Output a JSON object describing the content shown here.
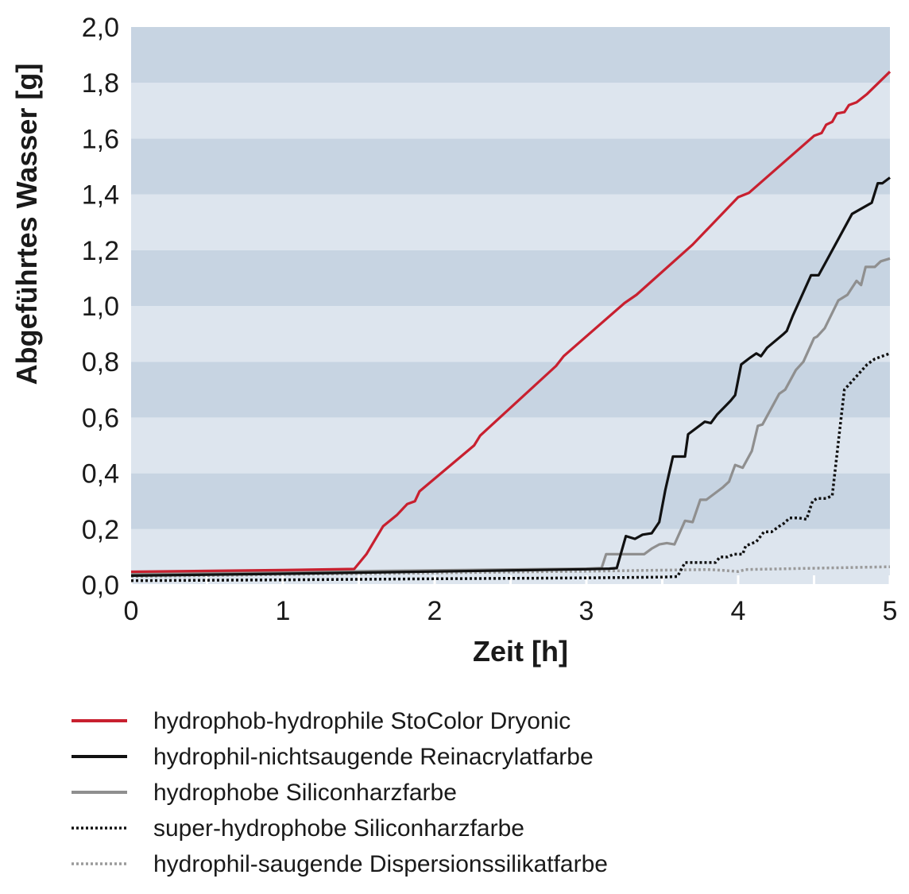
{
  "chart_data": {
    "type": "line",
    "title": "",
    "xlabel": "Zeit [h]",
    "ylabel": "Abgeführtes Wasser [g]",
    "xlim": [
      0,
      5
    ],
    "ylim": [
      0,
      2.0
    ],
    "x_ticks": [
      0,
      1,
      2,
      3,
      4,
      5
    ],
    "x_tick_labels": [
      "0",
      "1",
      "2",
      "3",
      "4",
      "5"
    ],
    "y_ticks": [
      0,
      0.2,
      0.4,
      0.6,
      0.8,
      1.0,
      1.2,
      1.4,
      1.6,
      1.8,
      2.0
    ],
    "y_tick_labels": [
      "0,0",
      "0,2",
      "0,4",
      "0,6",
      "0,8",
      "1,0",
      "1,2",
      "1,4",
      "1,6",
      "1,8",
      "2,0"
    ],
    "grid": "horizontal bands",
    "legend_position": "bottom",
    "band_colors": [
      "#c7d4e2",
      "#dde5ee"
    ],
    "series": [
      {
        "name": "hydrophob-hydrophile StoColor Dryonic",
        "color": "#c8202f",
        "style": "solid",
        "points": [
          [
            0,
            0.047
          ],
          [
            1.0,
            0.053
          ],
          [
            1.47,
            0.057
          ],
          [
            1.55,
            0.11
          ],
          [
            1.66,
            0.21
          ],
          [
            1.75,
            0.25
          ],
          [
            1.82,
            0.29
          ],
          [
            1.87,
            0.3
          ],
          [
            1.9,
            0.335
          ],
          [
            2.26,
            0.5
          ],
          [
            2.3,
            0.535
          ],
          [
            2.8,
            0.785
          ],
          [
            2.85,
            0.82
          ],
          [
            3.25,
            1.01
          ],
          [
            3.33,
            1.04
          ],
          [
            3.7,
            1.22
          ],
          [
            4.0,
            1.39
          ],
          [
            4.07,
            1.405
          ],
          [
            4.5,
            1.61
          ],
          [
            4.55,
            1.62
          ],
          [
            4.58,
            1.65
          ],
          [
            4.62,
            1.66
          ],
          [
            4.65,
            1.69
          ],
          [
            4.7,
            1.695
          ],
          [
            4.73,
            1.72
          ],
          [
            4.78,
            1.73
          ],
          [
            4.85,
            1.76
          ],
          [
            5.0,
            1.84
          ]
        ]
      },
      {
        "name": "hydrophil-nichtsaugende Reinacrylatfarbe",
        "color": "#111111",
        "style": "solid",
        "points": [
          [
            0,
            0.033
          ],
          [
            1.0,
            0.04
          ],
          [
            2.0,
            0.048
          ],
          [
            3.0,
            0.056
          ],
          [
            3.15,
            0.058
          ],
          [
            3.2,
            0.06
          ],
          [
            3.26,
            0.175
          ],
          [
            3.32,
            0.165
          ],
          [
            3.37,
            0.18
          ],
          [
            3.43,
            0.185
          ],
          [
            3.48,
            0.225
          ],
          [
            3.52,
            0.34
          ],
          [
            3.57,
            0.46
          ],
          [
            3.65,
            0.46
          ],
          [
            3.67,
            0.54
          ],
          [
            3.78,
            0.585
          ],
          [
            3.82,
            0.58
          ],
          [
            3.86,
            0.61
          ],
          [
            3.95,
            0.66
          ],
          [
            3.98,
            0.68
          ],
          [
            4.02,
            0.79
          ],
          [
            4.08,
            0.815
          ],
          [
            4.12,
            0.83
          ],
          [
            4.15,
            0.82
          ],
          [
            4.19,
            0.85
          ],
          [
            4.3,
            0.9
          ],
          [
            4.32,
            0.91
          ],
          [
            4.36,
            0.965
          ],
          [
            4.48,
            1.11
          ],
          [
            4.53,
            1.11
          ],
          [
            4.57,
            1.15
          ],
          [
            4.75,
            1.33
          ],
          [
            4.88,
            1.37
          ],
          [
            4.92,
            1.44
          ],
          [
            4.95,
            1.44
          ],
          [
            5.0,
            1.46
          ]
        ]
      },
      {
        "name": "hydrophobe Siliconharzfarbe",
        "color": "#8f8f8f",
        "style": "solid",
        "points": [
          [
            0,
            0.04
          ],
          [
            1.0,
            0.046
          ],
          [
            2.0,
            0.052
          ],
          [
            3.0,
            0.058
          ],
          [
            3.1,
            0.06
          ],
          [
            3.13,
            0.11
          ],
          [
            3.38,
            0.11
          ],
          [
            3.43,
            0.13
          ],
          [
            3.48,
            0.145
          ],
          [
            3.53,
            0.15
          ],
          [
            3.58,
            0.145
          ],
          [
            3.65,
            0.23
          ],
          [
            3.7,
            0.225
          ],
          [
            3.75,
            0.305
          ],
          [
            3.79,
            0.305
          ],
          [
            3.9,
            0.35
          ],
          [
            3.94,
            0.37
          ],
          [
            3.98,
            0.43
          ],
          [
            4.03,
            0.42
          ],
          [
            4.09,
            0.48
          ],
          [
            4.13,
            0.57
          ],
          [
            4.16,
            0.575
          ],
          [
            4.27,
            0.685
          ],
          [
            4.31,
            0.7
          ],
          [
            4.38,
            0.77
          ],
          [
            4.43,
            0.8
          ],
          [
            4.5,
            0.885
          ],
          [
            4.52,
            0.89
          ],
          [
            4.57,
            0.92
          ],
          [
            4.66,
            1.02
          ],
          [
            4.72,
            1.04
          ],
          [
            4.78,
            1.09
          ],
          [
            4.81,
            1.075
          ],
          [
            4.84,
            1.14
          ],
          [
            4.88,
            1.14
          ],
          [
            4.9,
            1.14
          ],
          [
            4.94,
            1.16
          ],
          [
            5.0,
            1.17
          ]
        ]
      },
      {
        "name": "super-hydrophobe Siliconharzfarbe",
        "color": "#111111",
        "style": "dotted",
        "points": [
          [
            0,
            0.015
          ],
          [
            1.0,
            0.018
          ],
          [
            2.0,
            0.022
          ],
          [
            3.0,
            0.025
          ],
          [
            3.5,
            0.028
          ],
          [
            3.6,
            0.03
          ],
          [
            3.65,
            0.08
          ],
          [
            3.85,
            0.08
          ],
          [
            3.88,
            0.1
          ],
          [
            3.93,
            0.1
          ],
          [
            3.97,
            0.11
          ],
          [
            4.03,
            0.11
          ],
          [
            4.05,
            0.14
          ],
          [
            4.12,
            0.155
          ],
          [
            4.17,
            0.19
          ],
          [
            4.22,
            0.19
          ],
          [
            4.27,
            0.21
          ],
          [
            4.3,
            0.22
          ],
          [
            4.34,
            0.24
          ],
          [
            4.4,
            0.24
          ],
          [
            4.45,
            0.235
          ],
          [
            4.49,
            0.3
          ],
          [
            4.52,
            0.31
          ],
          [
            4.58,
            0.31
          ],
          [
            4.62,
            0.32
          ],
          [
            4.67,
            0.56
          ],
          [
            4.7,
            0.7
          ],
          [
            4.75,
            0.73
          ],
          [
            4.8,
            0.76
          ],
          [
            4.85,
            0.79
          ],
          [
            4.9,
            0.81
          ],
          [
            4.95,
            0.82
          ],
          [
            5.0,
            0.83
          ]
        ]
      },
      {
        "name": "hydrophil-saugende Dispersionssilikatfarbe",
        "color": "#9a9a9a",
        "style": "dotted",
        "points": [
          [
            0,
            0.03
          ],
          [
            1.0,
            0.037
          ],
          [
            2.0,
            0.043
          ],
          [
            3.0,
            0.049
          ],
          [
            3.8,
            0.055
          ],
          [
            3.9,
            0.052
          ],
          [
            4.0,
            0.048
          ],
          [
            4.05,
            0.055
          ],
          [
            5.0,
            0.065
          ]
        ]
      }
    ]
  }
}
